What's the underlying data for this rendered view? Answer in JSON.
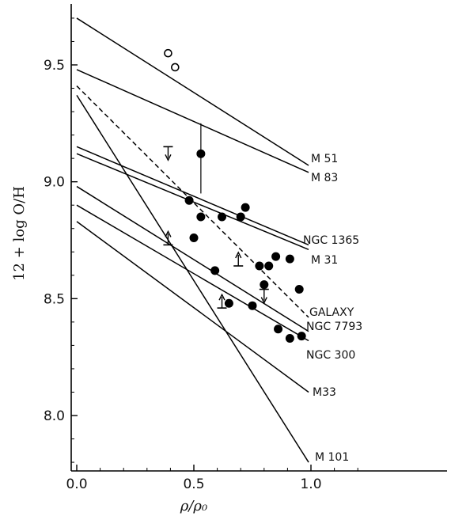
{
  "chart_data": {
    "type": "scatter",
    "title": "",
    "xlabel": "ρ/ρ₀",
    "ylabel": "12 + log O/H",
    "xlim": [
      0.0,
      1.2
    ],
    "ylim": [
      7.75,
      9.75
    ],
    "x_ticks": [
      0.0,
      0.5,
      1.0
    ],
    "x_tick_labels": [
      "0.0",
      "0.5",
      "1.0"
    ],
    "y_ticks": [
      8.0,
      8.5,
      9.0,
      9.5
    ],
    "y_tick_labels": [
      "8.0",
      "8.5",
      "9.0",
      "9.5"
    ],
    "grid": false,
    "legend": "none",
    "gradient_lines": [
      {
        "name": "M 51",
        "x0": 0.0,
        "y0": 9.7,
        "x1": 0.99,
        "y1": 9.07,
        "dashed": false
      },
      {
        "name": "M 83",
        "x0": 0.0,
        "y0": 9.48,
        "x1": 0.99,
        "y1": 9.04,
        "dashed": false
      },
      {
        "name": "NGC 1365",
        "x0": 0.0,
        "y0": 9.15,
        "x1": 0.99,
        "y1": 8.73,
        "dashed": false
      },
      {
        "name": "M 31",
        "x0": 0.0,
        "y0": 9.12,
        "x1": 0.99,
        "y1": 8.71,
        "dashed": false
      },
      {
        "name": "GALAXY",
        "x0": 0.0,
        "y0": 9.41,
        "x1": 0.99,
        "y1": 8.42,
        "dashed": true
      },
      {
        "name": "NGC 7793",
        "x0": 0.0,
        "y0": 8.98,
        "x1": 0.99,
        "y1": 8.36,
        "dashed": false
      },
      {
        "name": "NGC 300",
        "x0": 0.0,
        "y0": 8.9,
        "x1": 0.99,
        "y1": 8.32,
        "dashed": false
      },
      {
        "name": "M33",
        "x0": 0.0,
        "y0": 8.83,
        "x1": 0.99,
        "y1": 8.1,
        "dashed": false
      },
      {
        "name": "M 101",
        "x0": 0.0,
        "y0": 9.37,
        "x1": 0.99,
        "y1": 7.8,
        "dashed": false
      }
    ],
    "open_points": [
      {
        "x": 0.39,
        "y": 9.55
      },
      {
        "x": 0.42,
        "y": 9.49
      }
    ],
    "filled_points": [
      {
        "x": 0.48,
        "y": 8.92
      },
      {
        "x": 0.53,
        "y": 8.85
      },
      {
        "x": 0.5,
        "y": 8.76
      },
      {
        "x": 0.62,
        "y": 8.85
      },
      {
        "x": 0.7,
        "y": 8.85
      },
      {
        "x": 0.72,
        "y": 8.89
      },
      {
        "x": 0.59,
        "y": 8.62
      },
      {
        "x": 0.78,
        "y": 8.64
      },
      {
        "x": 0.82,
        "y": 8.64
      },
      {
        "x": 0.85,
        "y": 8.68
      },
      {
        "x": 0.91,
        "y": 8.67
      },
      {
        "x": 0.95,
        "y": 8.54
      },
      {
        "x": 0.65,
        "y": 8.48
      },
      {
        "x": 0.75,
        "y": 8.47
      },
      {
        "x": 0.86,
        "y": 8.37
      },
      {
        "x": 0.91,
        "y": 8.33
      },
      {
        "x": 0.96,
        "y": 8.34
      },
      {
        "x": 0.8,
        "y": 8.56
      }
    ],
    "error_point": {
      "x": 0.53,
      "y": 9.12,
      "y_low": 8.95,
      "y_high": 9.25
    },
    "upper_limits": [
      {
        "x": 0.39,
        "y": 9.15
      },
      {
        "x": 0.8,
        "y": 8.54
      }
    ],
    "lower_limits": [
      {
        "x": 0.39,
        "y": 8.73
      },
      {
        "x": 0.69,
        "y": 8.64
      },
      {
        "x": 0.62,
        "y": 8.46
      }
    ]
  }
}
